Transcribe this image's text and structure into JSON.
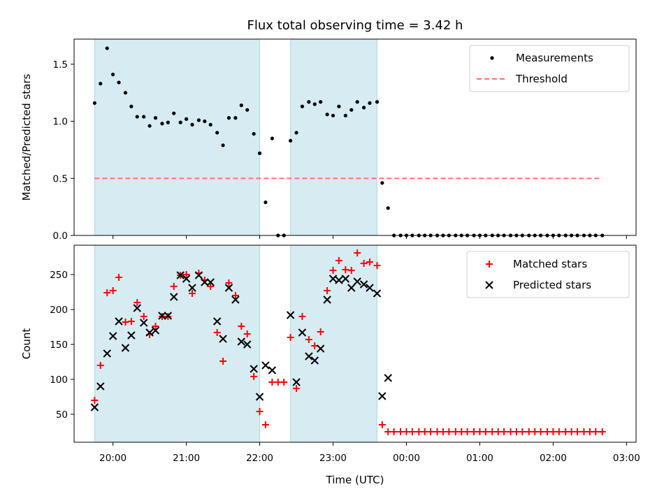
{
  "chart_data": [
    {
      "type": "scatter",
      "title": "Flux total observing time = 3.42 h",
      "xlabel": "",
      "ylabel": "Matched/Predicted stars",
      "ylim": [
        0,
        1.72
      ],
      "yticks": [
        0.0,
        0.5,
        1.0,
        1.5
      ],
      "ytick_labels": [
        "0.0",
        "0.5",
        "1.0",
        "1.5"
      ],
      "xlim_hours": [
        19.47,
        27.13
      ],
      "grid": false,
      "legend_position": "top-right",
      "legend": [
        "Measurements",
        "Threshold"
      ],
      "shaded_intervals": [
        [
          19.75,
          22.0
        ],
        [
          22.42,
          23.6
        ]
      ],
      "series": [
        {
          "name": "Measurements",
          "marker": "dot",
          "color": "#000000",
          "x": [
            19.75,
            19.83,
            19.92,
            20.0,
            20.08,
            20.17,
            20.25,
            20.33,
            20.42,
            20.5,
            20.58,
            20.67,
            20.75,
            20.83,
            20.92,
            21.0,
            21.08,
            21.17,
            21.25,
            21.33,
            21.42,
            21.5,
            21.58,
            21.67,
            21.75,
            21.83,
            21.92,
            22.0,
            22.08,
            22.17,
            22.25,
            22.33,
            22.42,
            22.5,
            22.58,
            22.67,
            22.75,
            22.83,
            22.92,
            23.0,
            23.08,
            23.17,
            23.25,
            23.33,
            23.42,
            23.5,
            23.6,
            23.67,
            23.75,
            23.83,
            23.92,
            24.0,
            24.08,
            24.17,
            24.25,
            24.33,
            24.42,
            24.5,
            24.58,
            24.67,
            24.75,
            24.83,
            24.92,
            25.0,
            25.08,
            25.17,
            25.25,
            25.33,
            25.42,
            25.5,
            25.58,
            25.67,
            25.75,
            25.83,
            25.92,
            26.0,
            26.08,
            26.17,
            26.25,
            26.33,
            26.42,
            26.5,
            26.58,
            26.67
          ],
          "y": [
            1.16,
            1.33,
            1.64,
            1.41,
            1.34,
            1.25,
            1.13,
            1.04,
            1.04,
            0.96,
            1.03,
            0.98,
            0.99,
            1.07,
            0.99,
            1.02,
            0.97,
            1.01,
            1.0,
            0.97,
            0.9,
            0.79,
            1.03,
            1.03,
            1.14,
            1.1,
            0.89,
            0.72,
            0.29,
            0.85,
            0.0,
            0.0,
            0.83,
            0.9,
            1.13,
            1.17,
            1.15,
            1.17,
            1.06,
            1.05,
            1.13,
            1.05,
            1.1,
            1.17,
            1.12,
            1.16,
            1.17,
            0.46,
            0.24,
            0.0,
            0.0,
            0.0,
            0.0,
            0.0,
            0.0,
            0.0,
            0.0,
            0.0,
            0.0,
            0.0,
            0.0,
            0.0,
            0.0,
            0.0,
            0.0,
            0.0,
            0.0,
            0.0,
            0.0,
            0.0,
            0.0,
            0.0,
            0.0,
            0.0,
            0.0,
            0.0,
            0.0,
            0.0,
            0.0,
            0.0,
            0.0,
            0.0,
            0.0,
            0.0
          ]
        },
        {
          "name": "Threshold",
          "marker": "dashed-line",
          "color": "#ff7070",
          "x": [
            19.75,
            26.67
          ],
          "y": [
            0.5,
            0.5
          ]
        }
      ]
    },
    {
      "type": "scatter",
      "title": "",
      "xlabel": "Time (UTC)",
      "ylabel": "Count",
      "ylim": [
        10,
        292
      ],
      "yticks": [
        50,
        100,
        150,
        200,
        250
      ],
      "ytick_labels": [
        "50",
        "100",
        "150",
        "200",
        "250"
      ],
      "xticks_hours": [
        20,
        21,
        22,
        23,
        24,
        25,
        26,
        27
      ],
      "xtick_labels": [
        "20:00",
        "21:00",
        "22:00",
        "23:00",
        "00:00",
        "01:00",
        "02:00",
        "03:00"
      ],
      "xlim_hours": [
        19.47,
        27.13
      ],
      "grid": false,
      "legend_position": "top-right",
      "legend": [
        "Matched stars",
        "Predicted stars"
      ],
      "shaded_intervals": [
        [
          19.75,
          22.0
        ],
        [
          22.42,
          23.6
        ]
      ],
      "series": [
        {
          "name": "Matched stars",
          "marker": "plus",
          "color": "#ff0000",
          "x": [
            19.75,
            19.83,
            19.92,
            20.0,
            20.08,
            20.17,
            20.25,
            20.33,
            20.42,
            20.5,
            20.58,
            20.67,
            20.75,
            20.83,
            20.92,
            21.0,
            21.08,
            21.17,
            21.25,
            21.33,
            21.42,
            21.5,
            21.58,
            21.67,
            21.75,
            21.83,
            21.92,
            22.0,
            22.08,
            22.17,
            22.25,
            22.33,
            22.42,
            22.5,
            22.58,
            22.67,
            22.75,
            22.83,
            22.92,
            23.0,
            23.08,
            23.17,
            23.25,
            23.33,
            23.42,
            23.5,
            23.6,
            23.67,
            23.75,
            23.83,
            23.92,
            24.0,
            24.08,
            24.17,
            24.25,
            24.33,
            24.42,
            24.5,
            24.58,
            24.67,
            24.75,
            24.83,
            24.92,
            25.0,
            25.08,
            25.17,
            25.25,
            25.33,
            25.42,
            25.5,
            25.58,
            25.67,
            25.75,
            25.83,
            25.92,
            26.0,
            26.08,
            26.17,
            26.25,
            26.33,
            26.42,
            26.5,
            26.58,
            26.67
          ],
          "y": [
            70,
            120,
            224,
            227,
            246,
            182,
            183,
            210,
            190,
            164,
            176,
            190,
            190,
            233,
            249,
            250,
            223,
            252,
            242,
            233,
            167,
            126,
            238,
            220,
            176,
            165,
            104,
            54,
            35,
            96,
            96,
            96,
            160,
            87,
            190,
            157,
            148,
            168,
            227,
            256,
            270,
            257,
            256,
            281,
            266,
            268,
            263,
            35,
            25,
            25,
            25,
            25,
            25,
            25,
            25,
            25,
            25,
            25,
            25,
            25,
            25,
            25,
            25,
            25,
            25,
            25,
            25,
            25,
            25,
            25,
            25,
            25,
            25,
            25,
            25,
            25,
            25,
            25,
            25,
            25,
            25,
            25,
            25,
            25
          ]
        },
        {
          "name": "Predicted stars",
          "marker": "x",
          "color": "#000000",
          "x": [
            19.75,
            19.83,
            19.92,
            20.0,
            20.08,
            20.17,
            20.25,
            20.33,
            20.42,
            20.5,
            20.58,
            20.67,
            20.75,
            20.83,
            20.92,
            21.0,
            21.08,
            21.17,
            21.25,
            21.33,
            21.42,
            21.5,
            21.58,
            21.67,
            21.75,
            21.83,
            21.92,
            22.0,
            22.08,
            22.17,
            22.42,
            22.5,
            22.58,
            22.67,
            22.75,
            22.83,
            22.92,
            23.0,
            23.08,
            23.17,
            23.25,
            23.33,
            23.42,
            23.5,
            23.6,
            23.67,
            23.75
          ],
          "y": [
            60,
            90,
            137,
            162,
            183,
            145,
            163,
            202,
            181,
            167,
            170,
            191,
            191,
            218,
            249,
            244,
            231,
            249,
            239,
            239,
            183,
            158,
            231,
            214,
            154,
            150,
            115,
            75,
            120,
            113,
            192,
            96,
            167,
            133,
            127,
            144,
            214,
            244,
            242,
            244,
            231,
            240,
            236,
            231,
            223,
            76,
            102
          ]
        }
      ]
    }
  ]
}
